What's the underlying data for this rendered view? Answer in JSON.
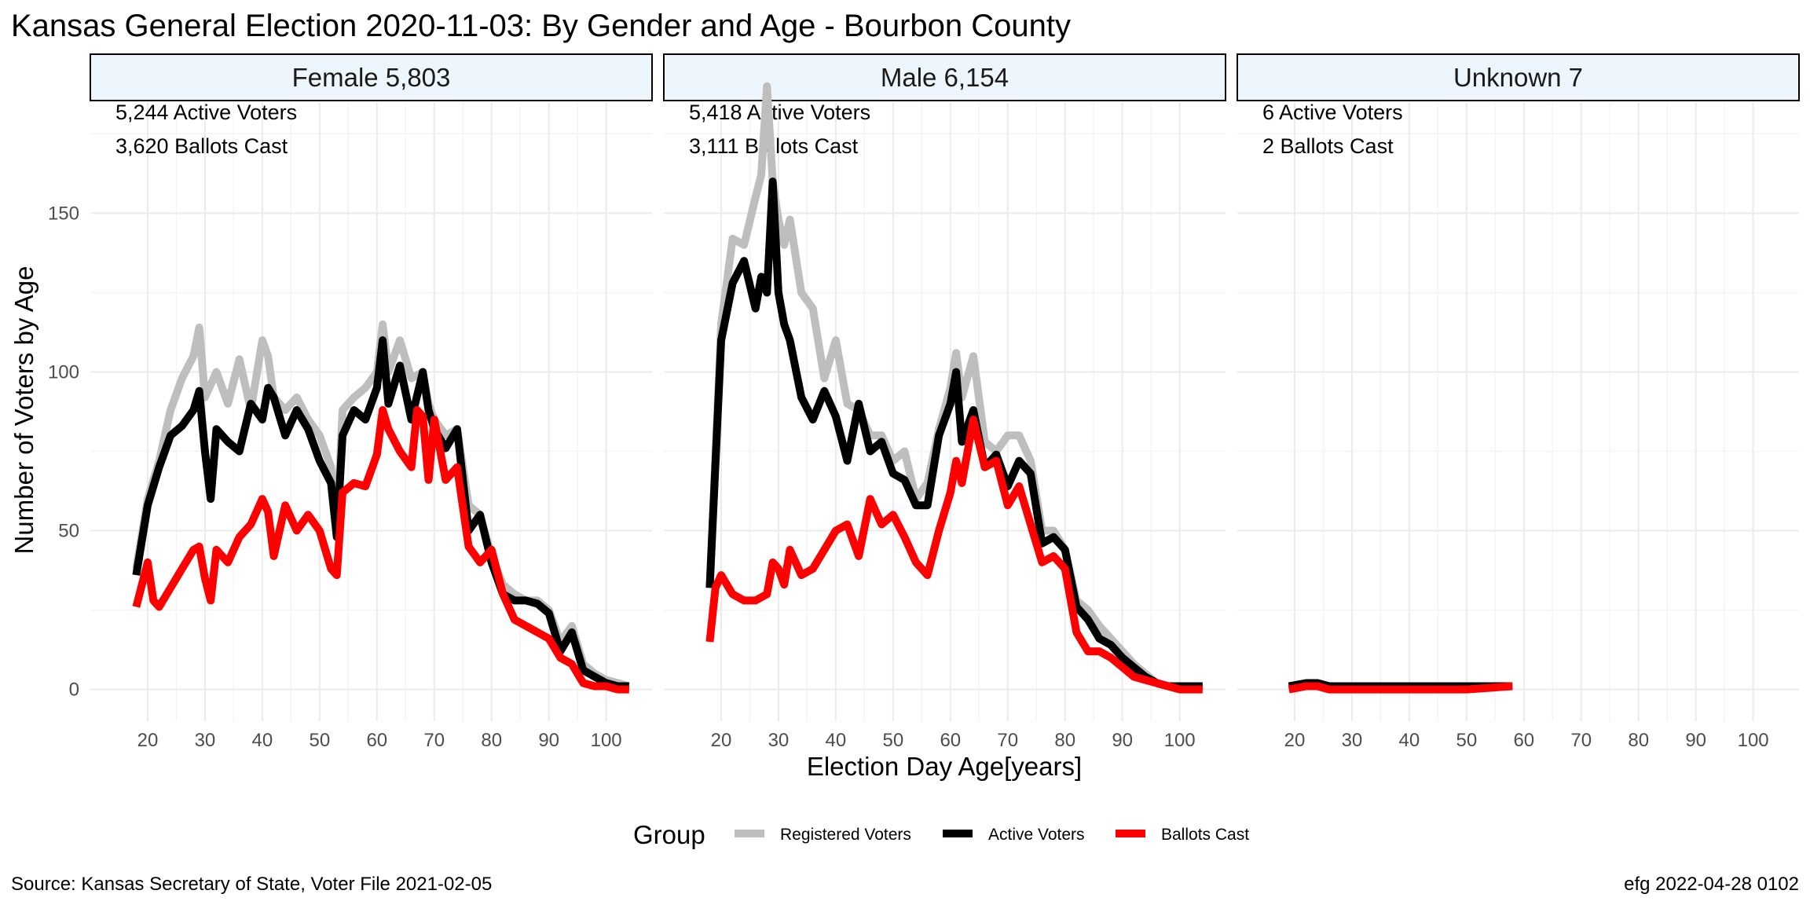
{
  "title": "Kansas General Election 2020-11-03:  By Gender and Age - Bourbon County",
  "caption_left": "Source:  Kansas Secretary of State, Voter File  2021-02-05",
  "caption_right": "efg 2022-04-28 0102",
  "colors": {
    "registered": "#bebebe",
    "active": "#000000",
    "ballots": "#ff0000",
    "strip_fill": "#eef6fd",
    "grid": "#ebebeb"
  },
  "chart_data": {
    "type": "line",
    "xlabel": "Election Day Age[years]",
    "ylabel": "Number of Voters by Age",
    "xlim": [
      10,
      108
    ],
    "ylim": [
      -10,
      185
    ],
    "x_ticks": [
      20,
      30,
      40,
      50,
      60,
      70,
      80,
      90,
      100
    ],
    "y_ticks": [
      0,
      50,
      100,
      150
    ],
    "grid": true,
    "legend": {
      "title": "Group",
      "position": "bottom",
      "items": [
        "Registered Voters",
        "Active Voters",
        "Ballots Cast"
      ]
    },
    "panels": [
      {
        "strip": "Female 5,803",
        "note1": "5,244 Active Voters",
        "note2": "3,620 Ballots Cast",
        "series": [
          {
            "name": "Registered Voters",
            "x": [
              18,
              20,
              22,
              24,
              26,
              28,
              29,
              30,
              32,
              34,
              36,
              38,
              40,
              41,
              42,
              44,
              46,
              48,
              50,
              52,
              53,
              54,
              56,
              58,
              60,
              61,
              62,
              64,
              66,
              68,
              69,
              70,
              72,
              74,
              76,
              78,
              80,
              82,
              84,
              86,
              88,
              90,
              92,
              94,
              96,
              98,
              100,
              102,
              104
            ],
            "y": [
              38,
              60,
              72,
              88,
              98,
              105,
              114,
              92,
              100,
              90,
              104,
              88,
              110,
              105,
              92,
              88,
              92,
              85,
              80,
              70,
              50,
              88,
              92,
              95,
              100,
              115,
              100,
              110,
              98,
              100,
              90,
              85,
              80,
              82,
              58,
              55,
              42,
              33,
              30,
              28,
              28,
              25,
              15,
              20,
              8,
              5,
              3,
              2,
              1
            ]
          },
          {
            "name": "Active Voters",
            "x": [
              18,
              20,
              22,
              24,
              26,
              28,
              29,
              30,
              31,
              32,
              34,
              36,
              38,
              40,
              41,
              42,
              44,
              46,
              48,
              50,
              52,
              53,
              54,
              56,
              58,
              60,
              61,
              62,
              64,
              66,
              68,
              69,
              70,
              72,
              74,
              76,
              78,
              80,
              82,
              84,
              86,
              88,
              90,
              92,
              94,
              96,
              98,
              100,
              102,
              104
            ],
            "y": [
              36,
              58,
              70,
              80,
              83,
              88,
              94,
              75,
              60,
              82,
              78,
              75,
              90,
              85,
              95,
              92,
              80,
              88,
              82,
              72,
              65,
              48,
              80,
              88,
              85,
              95,
              110,
              90,
              102,
              85,
              100,
              88,
              82,
              76,
              82,
              50,
              55,
              40,
              30,
              28,
              28,
              27,
              24,
              12,
              18,
              6,
              4,
              2,
              1,
              1
            ]
          },
          {
            "name": "Ballots Cast",
            "x": [
              18,
              20,
              21,
              22,
              24,
              26,
              28,
              29,
              30,
              31,
              32,
              34,
              36,
              38,
              40,
              41,
              42,
              44,
              46,
              48,
              50,
              52,
              53,
              54,
              56,
              58,
              60,
              61,
              62,
              64,
              66,
              67,
              68,
              69,
              70,
              72,
              74,
              76,
              78,
              80,
              82,
              84,
              86,
              88,
              90,
              92,
              94,
              96,
              98,
              100,
              102,
              104
            ],
            "y": [
              26,
              40,
              28,
              26,
              32,
              38,
              44,
              45,
              35,
              28,
              44,
              40,
              48,
              52,
              60,
              56,
              42,
              58,
              50,
              55,
              50,
              38,
              36,
              62,
              65,
              64,
              74,
              88,
              82,
              75,
              70,
              88,
              86,
              66,
              85,
              66,
              70,
              45,
              40,
              44,
              30,
              22,
              20,
              18,
              16,
              10,
              8,
              2,
              1,
              1,
              0,
              0
            ]
          }
        ]
      },
      {
        "strip": "Male 6,154",
        "note1": "5,418 Active Voters",
        "note2": "3,111 Ballots Cast",
        "series": [
          {
            "name": "Registered Voters",
            "x": [
              18,
              20,
              22,
              24,
              26,
              27,
              28,
              29,
              30,
              31,
              32,
              34,
              36,
              38,
              40,
              42,
              44,
              46,
              48,
              50,
              52,
              54,
              56,
              58,
              60,
              61,
              62,
              64,
              66,
              68,
              70,
              72,
              74,
              76,
              78,
              80,
              82,
              84,
              86,
              88,
              90,
              92,
              94,
              96,
              98,
              100,
              102,
              104
            ],
            "y": [
              32,
              115,
              142,
              140,
              155,
              162,
              190,
              160,
              148,
              140,
              148,
              125,
              120,
              98,
              110,
              90,
              88,
              80,
              80,
              72,
              75,
              60,
              65,
              82,
              95,
              106,
              92,
              105,
              78,
              75,
              80,
              80,
              72,
              50,
              50,
              44,
              28,
              25,
              20,
              16,
              12,
              8,
              5,
              2,
              1,
              1,
              1,
              1
            ]
          },
          {
            "name": "Active Voters",
            "x": [
              18,
              20,
              22,
              24,
              26,
              27,
              28,
              29,
              30,
              31,
              32,
              34,
              36,
              38,
              40,
              42,
              44,
              46,
              48,
              50,
              52,
              54,
              56,
              58,
              60,
              61,
              62,
              64,
              66,
              68,
              70,
              72,
              74,
              76,
              78,
              80,
              82,
              84,
              86,
              88,
              90,
              92,
              94,
              96,
              98,
              100,
              102,
              104
            ],
            "y": [
              32,
              110,
              128,
              135,
              120,
              130,
              125,
              160,
              125,
              115,
              110,
              92,
              85,
              94,
              86,
              72,
              90,
              75,
              78,
              68,
              66,
              58,
              58,
              80,
              90,
              100,
              78,
              88,
              70,
              74,
              64,
              72,
              68,
              46,
              48,
              44,
              26,
              22,
              16,
              14,
              10,
              7,
              4,
              2,
              1,
              1,
              1,
              1
            ]
          },
          {
            "name": "Ballots Cast",
            "x": [
              18,
              19,
              20,
              22,
              24,
              26,
              28,
              29,
              30,
              31,
              32,
              34,
              36,
              38,
              40,
              42,
              44,
              46,
              48,
              50,
              52,
              54,
              56,
              58,
              60,
              61,
              62,
              64,
              66,
              68,
              70,
              72,
              74,
              76,
              78,
              80,
              82,
              84,
              86,
              88,
              90,
              92,
              94,
              96,
              98,
              100,
              102,
              104
            ],
            "y": [
              15,
              32,
              36,
              30,
              28,
              28,
              30,
              40,
              38,
              33,
              44,
              36,
              38,
              44,
              50,
              52,
              42,
              60,
              52,
              55,
              48,
              40,
              36,
              50,
              62,
              72,
              65,
              85,
              70,
              72,
              58,
              64,
              52,
              40,
              42,
              38,
              18,
              12,
              12,
              10,
              7,
              4,
              3,
              2,
              1,
              0,
              0,
              0
            ]
          }
        ]
      },
      {
        "strip": "Unknown 7",
        "note1": "6 Active Voters",
        "note2": "2 Ballots Cast",
        "series": [
          {
            "name": "Registered Voters",
            "x": [
              19,
              22,
              24,
              26,
              30,
              40,
              50,
              58
            ],
            "y": [
              1,
              1,
              2,
              1,
              1,
              1,
              1,
              1
            ]
          },
          {
            "name": "Active Voters",
            "x": [
              19,
              22,
              24,
              26,
              30,
              40,
              50,
              58
            ],
            "y": [
              1,
              2,
              2,
              1,
              1,
              1,
              1,
              1
            ]
          },
          {
            "name": "Ballots Cast",
            "x": [
              19,
              22,
              24,
              26,
              30,
              40,
              50,
              58
            ],
            "y": [
              0,
              1,
              1,
              0,
              0,
              0,
              0,
              1
            ]
          }
        ]
      }
    ]
  }
}
